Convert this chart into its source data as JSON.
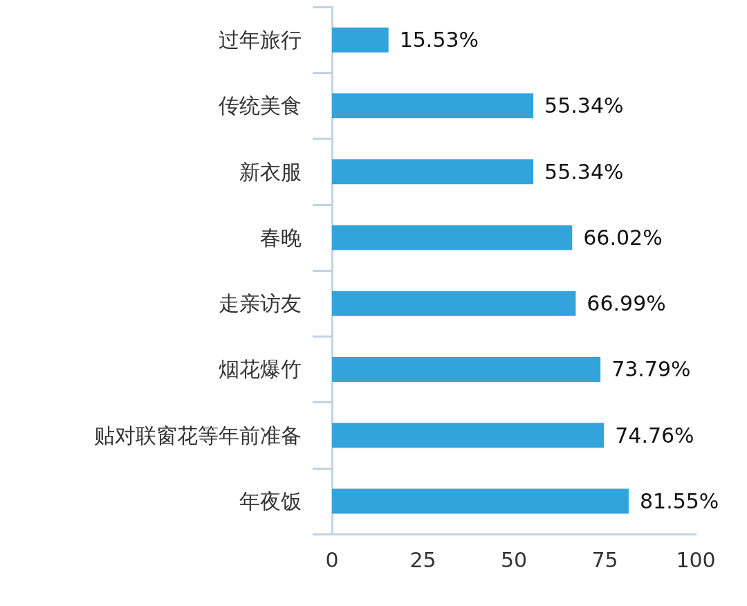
{
  "chart_data": {
    "type": "bar",
    "orientation": "horizontal",
    "categories": [
      "过年旅行",
      "传统美食",
      "新衣服",
      "春晚",
      "走亲访友",
      "烟花爆竹",
      "贴对联窗花等年前准备",
      "年夜饭"
    ],
    "values": [
      15.53,
      55.34,
      55.34,
      66.02,
      66.99,
      73.79,
      74.76,
      81.55
    ],
    "value_labels": [
      "15.53%",
      "55.34%",
      "55.34%",
      "66.02%",
      "66.99%",
      "73.79%",
      "74.76%",
      "81.55%"
    ],
    "color": "#33a4db",
    "xlim": [
      0,
      100
    ],
    "xticks": [
      0,
      25,
      50,
      75,
      100
    ],
    "grid": false
  }
}
